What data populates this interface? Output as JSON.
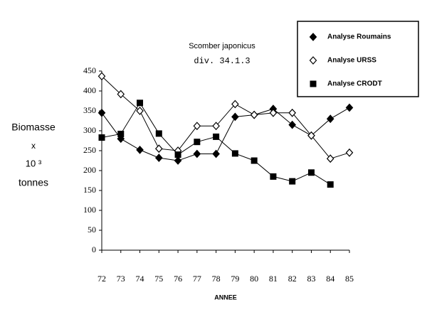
{
  "chart_data": {
    "type": "line",
    "title": "Scomber japonicus",
    "subtitle": "div. 34.1.3",
    "ylabel": [
      "Biomasse",
      "x",
      "10 ³",
      "tonnes"
    ],
    "xlabel": "ANNEE",
    "categories": [
      "72",
      "73",
      "74",
      "75",
      "76",
      "77",
      "78",
      "79",
      "80",
      "81",
      "82",
      "83",
      "84",
      "85"
    ],
    "series": [
      {
        "name": "Analyse Roumains",
        "color": "#000000",
        "marker": "diamond-filled",
        "values": [
          345,
          280,
          252,
          232,
          225,
          242,
          242,
          335,
          340,
          355,
          315,
          288,
          330,
          358
        ]
      },
      {
        "name": "Analyse URSS",
        "color": "#000000",
        "marker": "diamond-open",
        "values": [
          437,
          392,
          350,
          255,
          250,
          312,
          312,
          367,
          340,
          345,
          345,
          288,
          230,
          245
        ]
      },
      {
        "name": "Analyse CRODT",
        "color": "#000000",
        "marker": "square",
        "values": [
          283,
          292,
          370,
          293,
          240,
          272,
          285,
          243,
          225,
          185,
          173,
          195,
          165,
          null
        ]
      }
    ],
    "ylim": [
      0,
      450
    ],
    "yticks": [
      0,
      50,
      100,
      150,
      200,
      250,
      300,
      350,
      400,
      450
    ],
    "legend": "upper right"
  }
}
